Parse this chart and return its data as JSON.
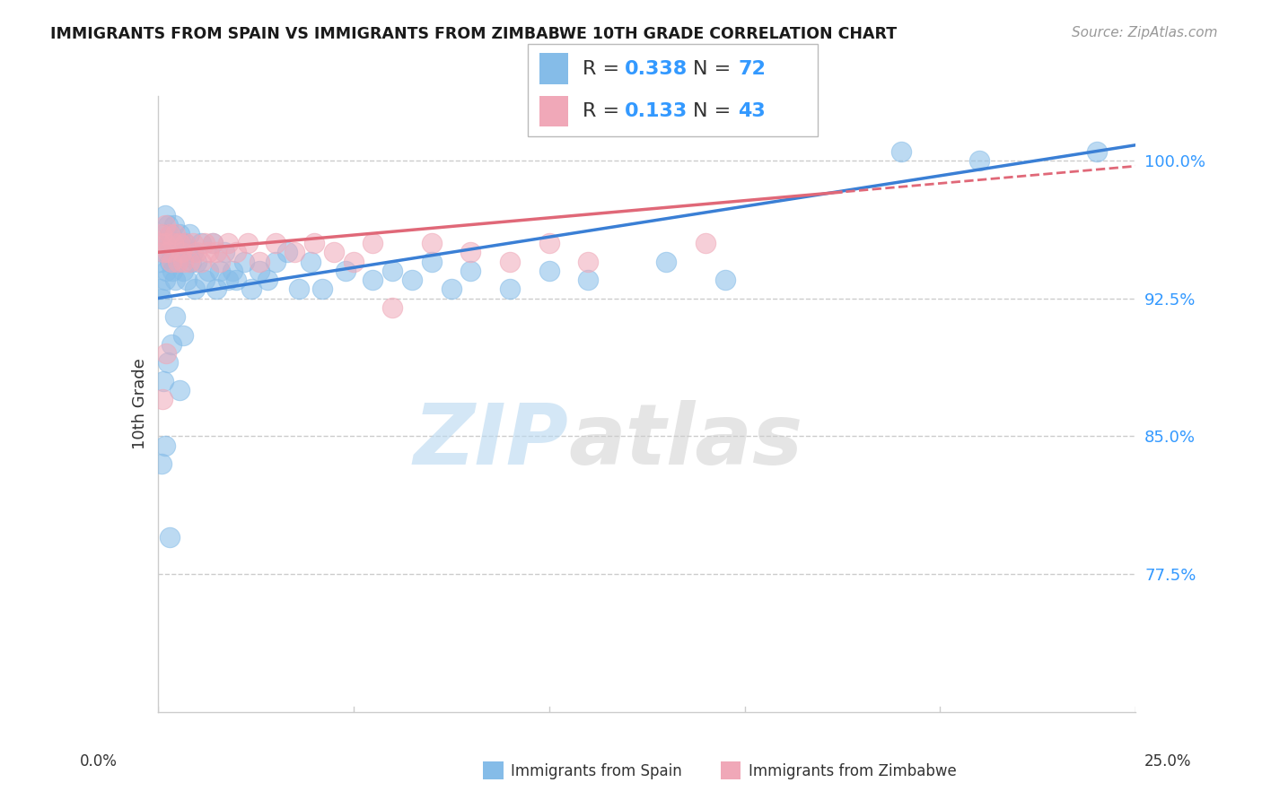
{
  "title": "IMMIGRANTS FROM SPAIN VS IMMIGRANTS FROM ZIMBABWE 10TH GRADE CORRELATION CHART",
  "source": "Source: ZipAtlas.com",
  "ylabel": "10th Grade",
  "ytick_values": [
    77.5,
    85.0,
    92.5,
    100.0
  ],
  "ytick_labels": [
    "77.5%",
    "85.0%",
    "92.5%",
    "100.0%"
  ],
  "xlim": [
    0.0,
    25.0
  ],
  "ylim": [
    70.0,
    103.5
  ],
  "watermark_zip": "ZIP",
  "watermark_atlas": "atlas",
  "spain_color": "#85bce8",
  "zimbabwe_color": "#f0a8b8",
  "spain_line_color": "#3a7fd5",
  "zimbabwe_line_color": "#e06878",
  "spain_R": 0.338,
  "spain_N": 72,
  "zimbabwe_R": 0.133,
  "zimbabwe_N": 43,
  "legend_label_spain": "Immigrants from Spain",
  "legend_label_zimbabwe": "Immigrants from Zimbabwe",
  "accent_color": "#3399ff",
  "text_color": "#333333",
  "grid_color": "#cccccc",
  "spain_x": [
    0.05,
    0.08,
    0.1,
    0.12,
    0.15,
    0.18,
    0.2,
    0.22,
    0.25,
    0.28,
    0.3,
    0.32,
    0.35,
    0.38,
    0.4,
    0.42,
    0.45,
    0.48,
    0.5,
    0.55,
    0.6,
    0.65,
    0.7,
    0.75,
    0.8,
    0.85,
    0.9,
    0.95,
    1.0,
    1.1,
    1.2,
    1.3,
    1.4,
    1.5,
    1.6,
    1.7,
    1.8,
    1.9,
    2.0,
    2.2,
    2.4,
    2.6,
    2.8,
    3.0,
    3.3,
    3.6,
    3.9,
    4.2,
    4.8,
    5.5,
    6.0,
    6.5,
    7.0,
    7.5,
    8.0,
    9.0,
    10.0,
    11.0,
    13.0,
    14.5,
    0.15,
    0.25,
    0.35,
    0.45,
    0.55,
    0.65,
    0.1,
    0.2,
    0.3,
    19.0,
    21.0,
    24.0
  ],
  "spain_y": [
    93.0,
    94.5,
    92.5,
    95.0,
    96.0,
    93.5,
    97.0,
    94.0,
    96.5,
    95.5,
    94.5,
    96.0,
    95.0,
    94.0,
    95.5,
    96.5,
    93.5,
    95.0,
    94.5,
    96.0,
    95.5,
    94.0,
    95.5,
    93.5,
    96.0,
    94.5,
    95.0,
    93.0,
    94.5,
    95.5,
    93.5,
    94.0,
    95.5,
    93.0,
    94.0,
    95.0,
    93.5,
    94.0,
    93.5,
    94.5,
    93.0,
    94.0,
    93.5,
    94.5,
    95.0,
    93.0,
    94.5,
    93.0,
    94.0,
    93.5,
    94.0,
    93.5,
    94.5,
    93.0,
    94.0,
    93.0,
    94.0,
    93.5,
    94.5,
    93.5,
    88.0,
    89.0,
    90.0,
    91.5,
    87.5,
    90.5,
    83.5,
    84.5,
    79.5,
    100.5,
    100.0,
    100.5
  ],
  "zimbabwe_x": [
    0.05,
    0.1,
    0.15,
    0.18,
    0.2,
    0.25,
    0.3,
    0.35,
    0.4,
    0.45,
    0.5,
    0.55,
    0.6,
    0.65,
    0.7,
    0.8,
    0.9,
    1.0,
    1.1,
    1.2,
    1.3,
    1.4,
    1.5,
    1.6,
    1.8,
    2.0,
    2.3,
    2.6,
    3.0,
    3.5,
    4.0,
    4.5,
    5.0,
    5.5,
    6.0,
    7.0,
    8.0,
    9.0,
    10.0,
    11.0,
    14.0,
    0.12,
    0.22
  ],
  "zimbabwe_y": [
    95.5,
    96.0,
    95.0,
    96.5,
    95.5,
    95.0,
    96.0,
    94.5,
    95.5,
    96.0,
    94.5,
    95.5,
    95.0,
    94.5,
    95.5,
    94.5,
    95.5,
    95.0,
    94.5,
    95.5,
    95.0,
    95.5,
    95.0,
    94.5,
    95.5,
    95.0,
    95.5,
    94.5,
    95.5,
    95.0,
    95.5,
    95.0,
    94.5,
    95.5,
    92.0,
    95.5,
    95.0,
    94.5,
    95.5,
    94.5,
    95.5,
    87.0,
    89.5
  ]
}
